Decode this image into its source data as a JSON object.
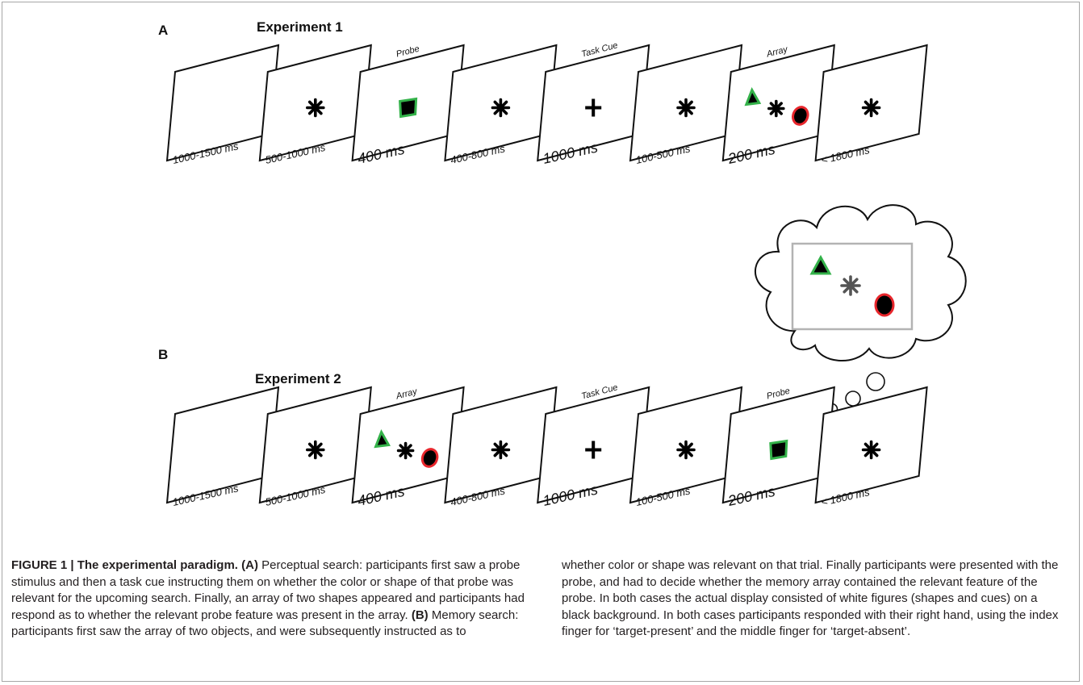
{
  "panel_a": {
    "letter": "A",
    "title": "Experiment 1",
    "frames": [
      {
        "label": "",
        "duration": "1000-1500 ms",
        "content": "blank"
      },
      {
        "label": "",
        "duration": "500-1000 ms",
        "content": "asterisk"
      },
      {
        "label": "Probe",
        "duration": "400 ms",
        "content": "probe"
      },
      {
        "label": "",
        "duration": "400-800 ms",
        "content": "asterisk"
      },
      {
        "label": "Task Cue",
        "duration": "1000 ms",
        "content": "plus"
      },
      {
        "label": "",
        "duration": "100-500 ms",
        "content": "asterisk"
      },
      {
        "label": "Array",
        "duration": "200 ms",
        "content": "array"
      },
      {
        "label": "",
        "duration": "< 1800 ms",
        "content": "asterisk"
      }
    ]
  },
  "panel_b": {
    "letter": "B",
    "title": "Experiment 2",
    "frames": [
      {
        "label": "",
        "duration": "1000-1500 ms",
        "content": "blank"
      },
      {
        "label": "",
        "duration": "500-1000 ms",
        "content": "asterisk"
      },
      {
        "label": "Array",
        "duration": "400 ms",
        "content": "array"
      },
      {
        "label": "",
        "duration": "400-800 ms",
        "content": "asterisk"
      },
      {
        "label": "Task Cue",
        "duration": "1000 ms",
        "content": "plus"
      },
      {
        "label": "",
        "duration": "100-500 ms",
        "content": "asterisk"
      },
      {
        "label": "Probe",
        "duration": "200 ms",
        "content": "probe"
      },
      {
        "label": "",
        "duration": "< 1800 ms",
        "content": "asterisk"
      }
    ]
  },
  "colors": {
    "green": "#34b24a",
    "red": "#e8262c",
    "frame_stroke": "#111111",
    "memory_rect": "#b3b3b3"
  },
  "caption": {
    "figure_label": "FIGURE 1 | ",
    "title": "The experimental paradigm.",
    "a_tag": "(A)",
    "a_text": "Perceptual search: participants first saw a probe stimulus and then a task cue instructing them on whether the color or shape of that probe was relevant for the upcoming search. Finally, an array of two shapes appeared and participants had respond as to whether the relevant probe feature was present in the array.",
    "b_tag": "(B)",
    "b_text": "Memory search: participants first saw the array of two objects, and were subsequently instructed as to",
    "continuation": "whether color or shape was relevant on that trial. Finally participants were presented with the probe, and had to decide whether the memory array contained the relevant feature of the probe. In both cases the actual display consisted of white figures (shapes and cues) on a black background. In both cases participants responded with their right hand, using the index finger for ‘target-present’ and the middle finger for ‘target-absent’."
  }
}
